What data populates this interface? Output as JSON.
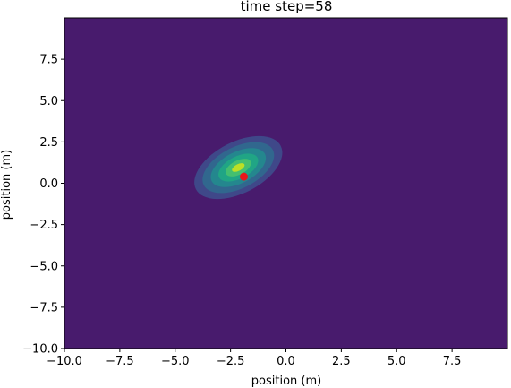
{
  "chart_data": {
    "type": "contour",
    "title": "time step=58",
    "xlabel": "position (m)",
    "ylabel": "position (m)",
    "xlim": [
      -10,
      10
    ],
    "ylim": [
      -10,
      10
    ],
    "x_ticks": [
      -10.0,
      -7.5,
      -5.0,
      -2.5,
      0.0,
      2.5,
      5.0,
      7.5
    ],
    "x_tick_labels": [
      "−10.0",
      "−7.5",
      "−5.0",
      "−2.5",
      "0.0",
      "2.5",
      "5.0",
      "7.5"
    ],
    "y_ticks": [
      -10.0,
      -7.5,
      -5.0,
      -2.5,
      0.0,
      2.5,
      5.0,
      7.5
    ],
    "y_tick_labels": [
      "−10.0",
      "−7.5",
      "−5.0",
      "−2.5",
      "0.0",
      "2.5",
      "5.0",
      "7.5"
    ],
    "grid": false,
    "colormap": "viridis",
    "background_color": "#481b6d",
    "distribution": {
      "center": [
        -2.15,
        0.95
      ],
      "rotation_deg": -27,
      "contour_levels": [
        {
          "semi_axes": [
            4.3,
            3.1
          ],
          "color": "#3f4889"
        },
        {
          "semi_axes": [
            3.5,
            2.5
          ],
          "color": "#31678e"
        },
        {
          "semi_axes": [
            2.7,
            1.9
          ],
          "color": "#24878e"
        },
        {
          "semi_axes": [
            1.95,
            1.35
          ],
          "color": "#20a585"
        },
        {
          "semi_axes": [
            1.25,
            0.85
          ],
          "color": "#44bf70"
        },
        {
          "semi_axes": [
            0.62,
            0.4
          ],
          "color": "#bddf26"
        }
      ]
    },
    "marker": {
      "x": -1.9,
      "y": 0.4,
      "color": "#e8161b"
    }
  }
}
